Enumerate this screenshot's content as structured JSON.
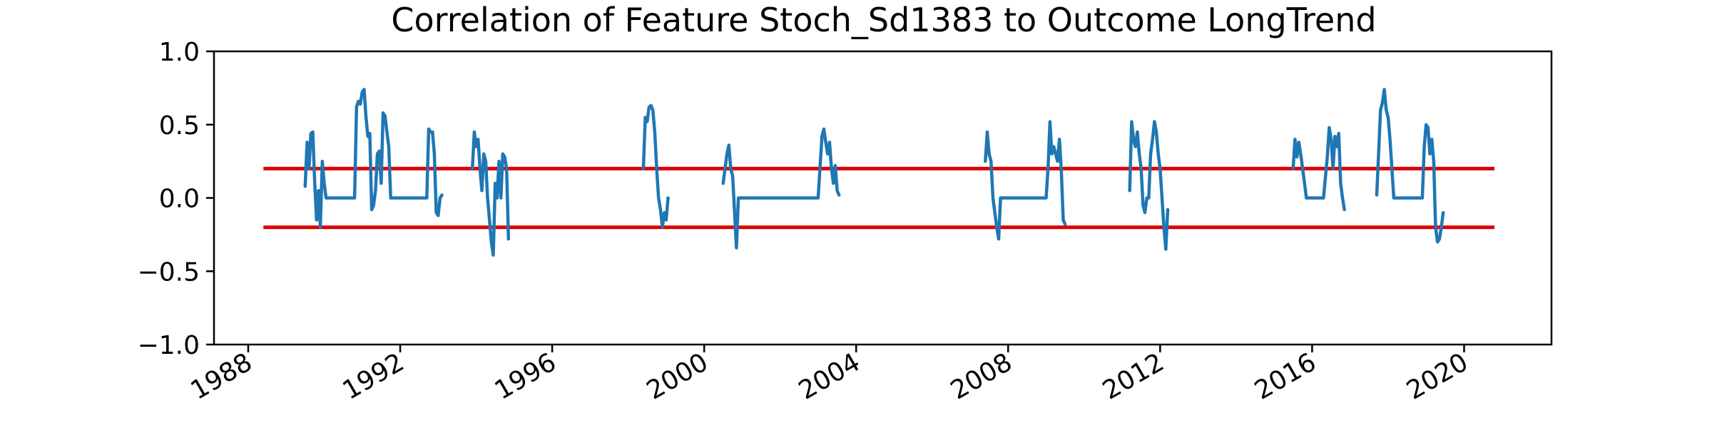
{
  "chart_data": {
    "type": "line",
    "title": "Correlation of Feature Stoch_Sd1383 to Outcome LongTrend",
    "xlabel": "",
    "ylabel": "",
    "xlim": [
      1987.1,
      2022.3
    ],
    "ylim": [
      -1.0,
      1.0
    ],
    "x_ticks": [
      1988,
      1992,
      1996,
      2000,
      2004,
      2008,
      2012,
      2016,
      2020
    ],
    "x_tick_labels": [
      "1988",
      "1992",
      "1996",
      "2000",
      "2004",
      "2008",
      "2012",
      "2016",
      "2020"
    ],
    "y_ticks": [
      -1.0,
      -0.5,
      0.0,
      0.5,
      1.0
    ],
    "y_tick_labels": [
      "−1.0",
      "−0.5",
      "0.0",
      "0.5",
      "1.0"
    ],
    "grid": false,
    "legend": "none",
    "colors": {
      "series": "#1f77b4",
      "threshold": "#e00000",
      "axes": "#000000"
    },
    "thresholds": [
      {
        "name": "upper-threshold",
        "y": 0.2,
        "x_start": 1988.4,
        "x_end": 2020.8
      },
      {
        "name": "lower-threshold",
        "y": -0.2,
        "x_start": 1988.4,
        "x_end": 2020.8
      }
    ],
    "series": [
      {
        "name": "correlation",
        "segments": [
          [
            [
              1989.5,
              0.08
            ],
            [
              1989.55,
              0.38
            ],
            [
              1989.6,
              0.2
            ],
            [
              1989.65,
              0.44
            ],
            [
              1989.7,
              0.45
            ],
            [
              1989.75,
              0.1
            ],
            [
              1989.8,
              -0.15
            ],
            [
              1989.85,
              0.05
            ],
            [
              1989.9,
              -0.2
            ],
            [
              1989.95,
              0.25
            ],
            [
              1990.0,
              0.1
            ],
            [
              1990.05,
              0.0
            ],
            [
              1990.5,
              0.0
            ],
            [
              1990.8,
              0.0
            ],
            [
              1990.85,
              0.62
            ],
            [
              1990.9,
              0.66
            ],
            [
              1990.95,
              0.64
            ],
            [
              1991.0,
              0.72
            ],
            [
              1991.05,
              0.74
            ],
            [
              1991.1,
              0.55
            ],
            [
              1991.15,
              0.42
            ],
            [
              1991.2,
              0.44
            ],
            [
              1991.25,
              -0.08
            ],
            [
              1991.3,
              -0.05
            ],
            [
              1991.35,
              0.05
            ],
            [
              1991.4,
              0.3
            ],
            [
              1991.45,
              0.32
            ],
            [
              1991.5,
              0.1
            ],
            [
              1991.55,
              0.58
            ],
            [
              1991.6,
              0.56
            ],
            [
              1991.65,
              0.45
            ],
            [
              1991.7,
              0.35
            ],
            [
              1991.75,
              0.0
            ],
            [
              1992.0,
              0.0
            ],
            [
              1992.5,
              0.0
            ],
            [
              1992.7,
              0.0
            ],
            [
              1992.75,
              0.47
            ],
            [
              1992.8,
              0.45
            ],
            [
              1992.85,
              0.45
            ],
            [
              1992.9,
              0.3
            ],
            [
              1992.95,
              -0.1
            ],
            [
              1993.0,
              -0.12
            ],
            [
              1993.05,
              0.0
            ],
            [
              1993.1,
              0.02
            ]
          ],
          [
            [
              1993.9,
              0.2
            ],
            [
              1993.95,
              0.45
            ],
            [
              1994.0,
              0.35
            ],
            [
              1994.05,
              0.4
            ],
            [
              1994.1,
              0.2
            ],
            [
              1994.15,
              0.05
            ],
            [
              1994.2,
              0.3
            ],
            [
              1994.25,
              0.25
            ],
            [
              1994.3,
              0.0
            ],
            [
              1994.35,
              -0.15
            ],
            [
              1994.4,
              -0.3
            ],
            [
              1994.45,
              -0.39
            ],
            [
              1994.5,
              0.1
            ],
            [
              1994.55,
              0.0
            ],
            [
              1994.6,
              0.25
            ],
            [
              1994.65,
              0.0
            ],
            [
              1994.7,
              0.3
            ],
            [
              1994.75,
              0.28
            ],
            [
              1994.8,
              0.2
            ],
            [
              1994.85,
              -0.28
            ]
          ],
          [
            [
              1998.4,
              0.2
            ],
            [
              1998.45,
              0.55
            ],
            [
              1998.5,
              0.52
            ],
            [
              1998.55,
              0.62
            ],
            [
              1998.6,
              0.63
            ],
            [
              1998.65,
              0.6
            ],
            [
              1998.7,
              0.45
            ],
            [
              1998.75,
              0.2
            ],
            [
              1998.8,
              0.0
            ],
            [
              1998.85,
              -0.08
            ],
            [
              1998.9,
              -0.2
            ],
            [
              1998.95,
              -0.1
            ],
            [
              1999.0,
              -0.15
            ],
            [
              1999.05,
              0.0
            ]
          ],
          [
            [
              2000.5,
              0.1
            ],
            [
              2000.55,
              0.2
            ],
            [
              2000.6,
              0.3
            ],
            [
              2000.65,
              0.36
            ],
            [
              2000.7,
              0.2
            ],
            [
              2000.75,
              0.15
            ],
            [
              2000.8,
              -0.1
            ],
            [
              2000.85,
              -0.34
            ],
            [
              2000.9,
              0.0
            ],
            [
              2001.5,
              0.0
            ],
            [
              2002.0,
              0.0
            ],
            [
              2003.0,
              0.0
            ],
            [
              2003.1,
              0.42
            ],
            [
              2003.15,
              0.47
            ],
            [
              2003.2,
              0.38
            ],
            [
              2003.25,
              0.3
            ],
            [
              2003.3,
              0.38
            ],
            [
              2003.35,
              0.2
            ],
            [
              2003.4,
              0.1
            ],
            [
              2003.45,
              0.22
            ],
            [
              2003.5,
              0.05
            ],
            [
              2003.55,
              0.02
            ]
          ],
          [
            [
              2007.4,
              0.25
            ],
            [
              2007.45,
              0.45
            ],
            [
              2007.5,
              0.3
            ],
            [
              2007.55,
              0.25
            ],
            [
              2007.6,
              0.0
            ],
            [
              2007.65,
              -0.1
            ],
            [
              2007.7,
              -0.2
            ],
            [
              2007.75,
              -0.28
            ],
            [
              2007.8,
              0.0
            ],
            [
              2008.5,
              0.0
            ],
            [
              2009.0,
              0.0
            ],
            [
              2009.05,
              0.2
            ],
            [
              2009.1,
              0.52
            ],
            [
              2009.15,
              0.3
            ],
            [
              2009.2,
              0.35
            ],
            [
              2009.25,
              0.3
            ],
            [
              2009.3,
              0.25
            ],
            [
              2009.35,
              0.4
            ],
            [
              2009.4,
              0.18
            ],
            [
              2009.45,
              -0.15
            ],
            [
              2009.5,
              -0.18
            ]
          ],
          [
            [
              2011.2,
              0.05
            ],
            [
              2011.25,
              0.52
            ],
            [
              2011.3,
              0.4
            ],
            [
              2011.35,
              0.35
            ],
            [
              2011.4,
              0.45
            ],
            [
              2011.45,
              0.3
            ],
            [
              2011.5,
              0.2
            ],
            [
              2011.55,
              -0.05
            ],
            [
              2011.6,
              -0.1
            ],
            [
              2011.65,
              0.0
            ],
            [
              2011.7,
              0.0
            ],
            [
              2011.75,
              0.3
            ],
            [
              2011.8,
              0.4
            ],
            [
              2011.85,
              0.52
            ],
            [
              2011.9,
              0.45
            ],
            [
              2011.95,
              0.3
            ],
            [
              2012.0,
              0.2
            ],
            [
              2012.05,
              0.0
            ],
            [
              2012.1,
              -0.2
            ],
            [
              2012.15,
              -0.35
            ],
            [
              2012.2,
              -0.08
            ]
          ],
          [
            [
              2015.5,
              0.2
            ],
            [
              2015.55,
              0.4
            ],
            [
              2015.6,
              0.28
            ],
            [
              2015.65,
              0.38
            ],
            [
              2015.7,
              0.3
            ],
            [
              2015.75,
              0.2
            ],
            [
              2015.8,
              0.1
            ],
            [
              2015.85,
              0.0
            ],
            [
              2016.0,
              0.0
            ],
            [
              2016.3,
              0.0
            ],
            [
              2016.4,
              0.28
            ],
            [
              2016.45,
              0.48
            ],
            [
              2016.5,
              0.4
            ],
            [
              2016.55,
              0.2
            ],
            [
              2016.6,
              0.42
            ],
            [
              2016.65,
              0.35
            ],
            [
              2016.7,
              0.44
            ],
            [
              2016.75,
              0.1
            ],
            [
              2016.8,
              0.0
            ],
            [
              2016.85,
              -0.08
            ]
          ],
          [
            [
              2017.7,
              0.02
            ],
            [
              2017.75,
              0.3
            ],
            [
              2017.8,
              0.6
            ],
            [
              2017.85,
              0.65
            ],
            [
              2017.9,
              0.74
            ],
            [
              2017.95,
              0.6
            ],
            [
              2018.0,
              0.55
            ],
            [
              2018.05,
              0.4
            ],
            [
              2018.1,
              0.2
            ],
            [
              2018.15,
              0.0
            ],
            [
              2018.5,
              0.0
            ],
            [
              2018.9,
              0.0
            ],
            [
              2018.95,
              0.35
            ],
            [
              2019.0,
              0.5
            ],
            [
              2019.05,
              0.48
            ],
            [
              2019.1,
              0.3
            ],
            [
              2019.15,
              0.4
            ],
            [
              2019.2,
              0.25
            ],
            [
              2019.25,
              -0.2
            ],
            [
              2019.3,
              -0.3
            ],
            [
              2019.35,
              -0.28
            ],
            [
              2019.4,
              -0.2
            ],
            [
              2019.45,
              -0.1
            ]
          ]
        ]
      }
    ]
  }
}
